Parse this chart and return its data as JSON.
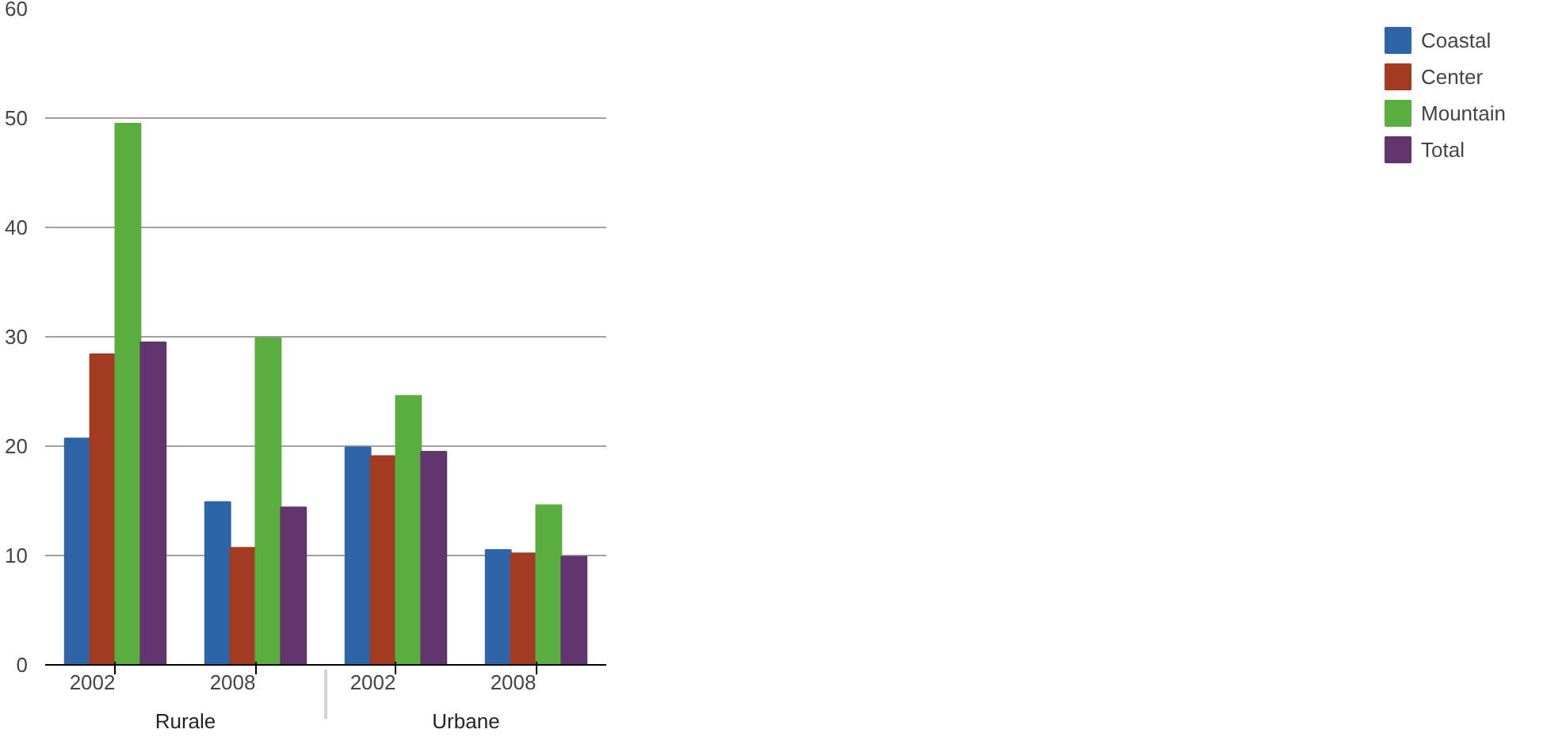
{
  "chart_data": {
    "type": "bar",
    "categories": [
      "2002",
      "2008",
      "2002",
      "2008"
    ],
    "annotations": [
      "Rurale",
      "Urbane"
    ],
    "series": [
      {
        "name": "Coastal",
        "color": "#2e64a8",
        "values": [
          20.7,
          14.9,
          19.9,
          10.5
        ]
      },
      {
        "name": "Center",
        "color": "#a33a22",
        "values": [
          28.4,
          10.7,
          19.1,
          10.2
        ]
      },
      {
        "name": "Mountain",
        "color": "#5aae3f",
        "values": [
          49.5,
          29.9,
          24.6,
          14.6
        ]
      },
      {
        "name": "Total",
        "color": "#62356e",
        "values": [
          29.5,
          14.4,
          19.5,
          9.9
        ]
      }
    ],
    "ylim": [
      0,
      60
    ],
    "yticks": [
      0,
      10,
      20,
      30,
      40,
      50,
      60
    ],
    "grid": "y",
    "legend": "right"
  }
}
